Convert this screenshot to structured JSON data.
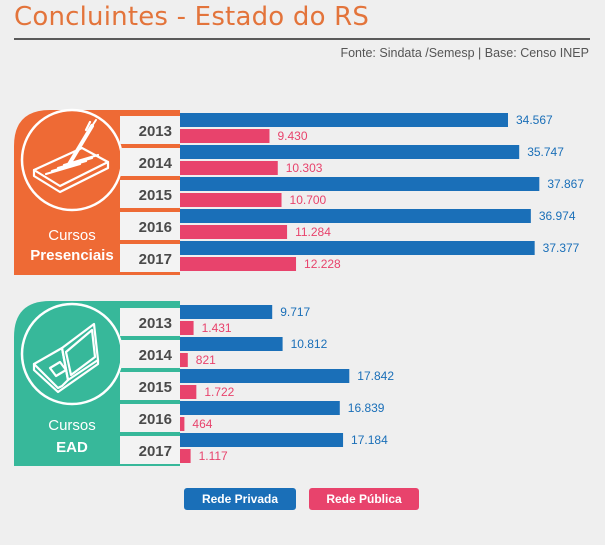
{
  "page": {
    "title": "Concluintes - Estado do RS",
    "source": "Fonte: Sindata /Semesp | Base: Censo INEP"
  },
  "colors": {
    "private": "#1a6fb8",
    "public": "#e8436c",
    "presencial_panel": "#ee6a35",
    "ead_panel": "#37b89a",
    "year_text": "#4a4a4a"
  },
  "legend": {
    "private": "Rede Privada",
    "public": "Rede Pública"
  },
  "chart_data": [
    {
      "type": "bar",
      "orientation": "horizontal",
      "panel": {
        "line1": "Cursos",
        "line2": "Presenciais",
        "icon": "pen-and-paper-icon"
      },
      "categories": [
        "2013",
        "2014",
        "2015",
        "2016",
        "2017"
      ],
      "series": [
        {
          "name": "Rede Privada",
          "values": [
            34567,
            35747,
            37867,
            36974,
            37377
          ],
          "labels": [
            "34.567",
            "35.747",
            "37.867",
            "36.974",
            "37.377"
          ]
        },
        {
          "name": "Rede Pública",
          "values": [
            9430,
            10303,
            10700,
            11284,
            12228
          ],
          "labels": [
            "9.430",
            "10.303",
            "10.700",
            "11.284",
            "12.228"
          ]
        }
      ]
    },
    {
      "type": "bar",
      "orientation": "horizontal",
      "panel": {
        "line1": "Cursos",
        "line2": "EAD",
        "icon": "laptop-icon"
      },
      "categories": [
        "2013",
        "2014",
        "2015",
        "2016",
        "2017"
      ],
      "series": [
        {
          "name": "Rede Privada",
          "values": [
            9717,
            10812,
            17842,
            16839,
            17184
          ],
          "labels": [
            "9.717",
            "10.812",
            "17.842",
            "16.839",
            "17.184"
          ]
        },
        {
          "name": "Rede Pública",
          "values": [
            1431,
            821,
            1722,
            464,
            1117
          ],
          "labels": [
            "1.431",
            "821",
            "1.722",
            "464",
            "1.117"
          ]
        }
      ]
    }
  ]
}
